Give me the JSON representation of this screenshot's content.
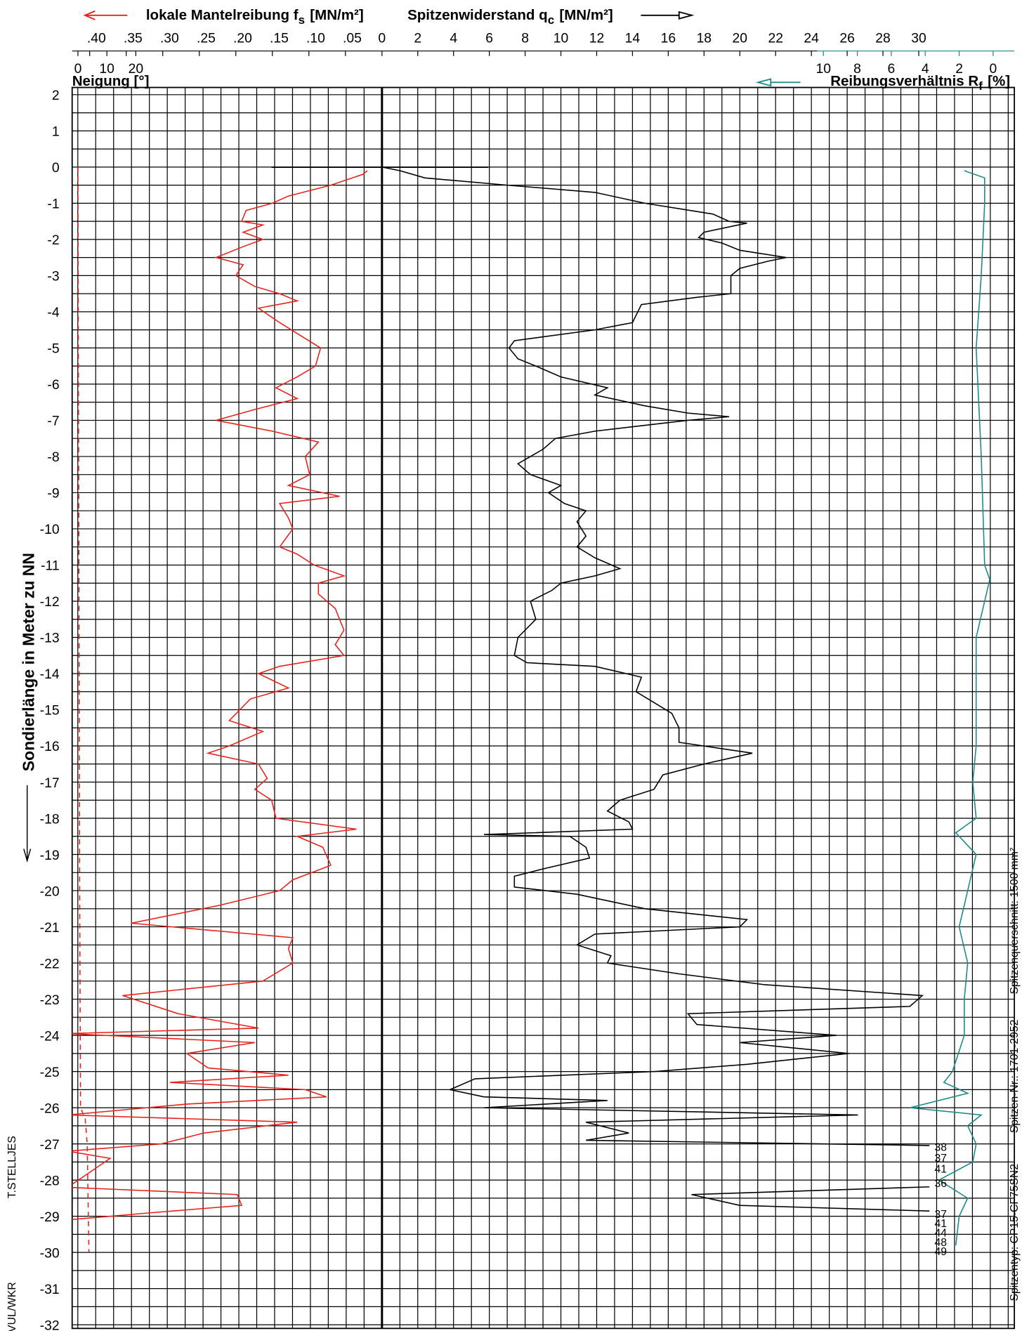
{
  "chart_data": {
    "type": "cpt",
    "y_label": "Sondierlänge in Meter zu  NN",
    "ylim": [
      2.2,
      -32.1
    ],
    "yticks": [
      2,
      1,
      0,
      -1,
      -2,
      -3,
      -4,
      -5,
      -6,
      -7,
      -8,
      -9,
      -10,
      -11,
      -12,
      -13,
      -14,
      -15,
      -16,
      -17,
      -18,
      -19,
      -20,
      -21,
      -22,
      -23,
      -24,
      -25,
      -26,
      -27,
      -28,
      -29,
      -30,
      -31,
      -32
    ],
    "grid": true,
    "fs_axis": {
      "title": {
        "text": "lokale Mantelreibung f",
        "sub": "s",
        "unit": "[MN/m²]"
      },
      "lim": [
        0.424,
        0
      ],
      "ticks": [
        {
          "value": 0.4,
          "label": ".40"
        },
        {
          "value": 0.35,
          "label": ".35"
        },
        {
          "value": 0.3,
          "label": ".30"
        },
        {
          "value": 0.25,
          "label": ".25"
        },
        {
          "value": 0.2,
          "label": ".20"
        },
        {
          "value": 0.15,
          "label": ".15"
        },
        {
          "value": 0.1,
          "label": ".10"
        },
        {
          "value": 0.05,
          "label": ".05"
        }
      ]
    },
    "qc_axis": {
      "title": {
        "text": "Spitzenwiderstand q",
        "sub": "c",
        "unit": "[MN/m²]"
      },
      "lim": [
        0,
        30.6
      ],
      "ticks": [
        0,
        2,
        4,
        6,
        8,
        10,
        12,
        14,
        16,
        18,
        20,
        22,
        24,
        26,
        28,
        30
      ]
    },
    "rf_axis": {
      "title": {
        "text": "Reibungsverhältnis R",
        "sub": "f",
        "unit": "[%]"
      },
      "lim": [
        10.35,
        -1.25
      ],
      "ticks": [
        10,
        8,
        6,
        4,
        2,
        0
      ]
    },
    "neigung_axis": {
      "title": "Neigung [°]",
      "lim": [
        -2,
        20
      ],
      "ticks": [
        0,
        10,
        20
      ]
    },
    "series": [
      {
        "axis": "qc",
        "color": "#000000",
        "dash": false,
        "depth": [
          0,
          -0.1,
          -0.3,
          -0.5,
          -0.7,
          -1.0,
          -1.3,
          -1.5,
          -1.55,
          -1.8,
          -1.95,
          -2.1,
          -2.3,
          -2.5,
          -2.6,
          -2.8,
          -3.0,
          -3.3,
          -3.5,
          -3.6,
          -3.8,
          -4.3,
          -4.5,
          -4.8,
          -5.0,
          -5.3,
          -5.5,
          -5.8,
          -6.1,
          -6.3,
          -6.6,
          -6.8,
          -6.9,
          -7.0,
          -7.3,
          -7.5,
          -7.8,
          -8.2,
          -8.5,
          -8.8,
          -9.0,
          -9.3,
          -9.5,
          -9.8,
          -10.2,
          -10.5,
          -10.8,
          -11.1,
          -11.3,
          -11.5,
          -11.7,
          -12.0,
          -12.5,
          -13.0,
          -13.5,
          -13.7,
          -13.8,
          -14.1,
          -14.5,
          -14.8,
          -15.1,
          -15.5,
          -15.9,
          -16.2,
          -16.5,
          -16.8,
          -17.2,
          -17.5,
          -17.8,
          -18.1,
          -18.3,
          -18.45,
          -18.5,
          -18.8,
          -19.1,
          -19.4,
          -19.6,
          -19.9,
          -20.1,
          -20.5,
          -20.8,
          -21.0,
          -21.2,
          -21.5,
          -21.8,
          -22.0,
          -22.3,
          -22.6,
          -22.9,
          -23.2,
          -23.4,
          -23.7,
          -24.0,
          -24.2,
          -24.5,
          -24.8,
          -25.0,
          -25.2,
          -25.5,
          -25.7,
          -25.8,
          -26.0,
          -26.2,
          -26.4,
          -26.7,
          -26.9,
          -27.1,
          -27.4,
          -27.7,
          -28.1,
          -28.4,
          -28.7,
          -28.95,
          -29.2,
          -29.4,
          -29.6,
          -29.8
        ],
        "values": [
          0,
          1,
          2.4,
          7,
          11.9,
          14.7,
          18.5,
          19.4,
          20.4,
          18,
          17.7,
          19,
          20,
          22.6,
          21.6,
          20,
          19.5,
          19.5,
          19.5,
          17.6,
          14.5,
          14,
          11.9,
          7.4,
          7.1,
          7.6,
          8.6,
          10,
          12.6,
          11.9,
          14.7,
          17.1,
          19.4,
          17.1,
          11.9,
          9.7,
          9,
          7.6,
          8.3,
          10,
          9.3,
          10.2,
          11.4,
          10.9,
          11.4,
          10.9,
          11.9,
          13.3,
          11.9,
          10,
          9.5,
          8.3,
          8.6,
          7.6,
          7.4,
          8.1,
          11.9,
          14.5,
          14.2,
          15.2,
          16.2,
          16.6,
          16.6,
          20.7,
          18,
          15.7,
          15.2,
          13.3,
          12.6,
          13.8,
          14,
          5.7,
          10.5,
          11.4,
          11.6,
          9,
          7.4,
          7.4,
          10.9,
          14.7,
          20.4,
          20,
          11.9,
          10.9,
          12.8,
          12.6,
          16.6,
          21.4,
          30.2,
          29.5,
          17.1,
          17.6,
          25.4,
          20,
          26.1,
          20.4,
          15.2,
          5.2,
          3.8,
          5.7,
          12.6,
          5.7,
          26.6,
          11.4,
          13.8,
          11.4,
          38,
          37,
          41,
          36,
          17.3,
          20,
          37,
          41,
          44,
          48,
          49
        ]
      },
      {
        "axis": "fs",
        "color": "#e8221b",
        "dash": false,
        "depth": [
          -0.1,
          -0.2,
          -0.5,
          -0.8,
          -1.0,
          -1.2,
          -1.5,
          -1.6,
          -1.8,
          -2.0,
          -2.2,
          -2.5,
          -2.7,
          -3.0,
          -3.3,
          -3.5,
          -3.7,
          -3.9,
          -4.3,
          -4.6,
          -5.0,
          -5.5,
          -5.8,
          -6.1,
          -6.4,
          -6.7,
          -7.0,
          -7.3,
          -7.6,
          -8.0,
          -8.5,
          -8.8,
          -9.1,
          -9.3,
          -9.7,
          -10.0,
          -10.5,
          -10.7,
          -11.0,
          -11.3,
          -11.5,
          -11.8,
          -12.2,
          -12.8,
          -13.2,
          -13.5,
          -13.8,
          -14.0,
          -14.4,
          -14.7,
          -15.3,
          -15.6,
          -16.0,
          -16.2,
          -16.5,
          -16.9,
          -17.2,
          -17.5,
          -18.0,
          -18.3,
          -18.5,
          -18.8,
          -19.3,
          -19.7,
          -20.0,
          -20.4,
          -20.9,
          -21.3,
          -21.6,
          -22.0,
          -22.5,
          -22.9,
          -23.4,
          -23.8,
          -23.95,
          -24.2,
          -24.5,
          -24.9,
          -25.1,
          -25.3,
          -25.5,
          -25.7,
          -25.9,
          -26.2,
          -26.4,
          -26.7,
          -27.0,
          -27.2,
          -27.4,
          -28.2,
          -28.4,
          -28.7,
          -28.9,
          -29.1
        ],
        "values": [
          0.02,
          0.026,
          0.07,
          0.128,
          0.15,
          0.186,
          0.192,
          0.163,
          0.19,
          0.163,
          0.19,
          0.227,
          0.19,
          0.2,
          0.174,
          0.14,
          0.116,
          0.169,
          0.14,
          0.116,
          0.084,
          0.091,
          0.116,
          0.145,
          0.116,
          0.174,
          0.227,
          0.15,
          0.087,
          0.105,
          0.099,
          0.128,
          0.058,
          0.14,
          0.128,
          0.122,
          0.14,
          0.116,
          0.093,
          0.052,
          0.087,
          0.087,
          0.064,
          0.052,
          0.064,
          0.052,
          0.14,
          0.169,
          0.128,
          0.18,
          0.209,
          0.163,
          0.209,
          0.238,
          0.169,
          0.157,
          0.174,
          0.151,
          0.145,
          0.035,
          0.116,
          0.081,
          0.07,
          0.122,
          0.14,
          0.221,
          0.343,
          0.122,
          0.128,
          0.122,
          0.163,
          0.355,
          0.279,
          0.169,
          0.43,
          0.174,
          0.267,
          0.238,
          0.128,
          0.29,
          0.105,
          0.076,
          0.267,
          0.43,
          0.116,
          0.244,
          0.302,
          0.43,
          0.372,
          0.43,
          0.198,
          0.192,
          0.314,
          0.43
        ]
      },
      {
        "axis": "rf",
        "color": "#1a8a8a",
        "dash": false,
        "depth": [
          -0.1,
          -0.3,
          -1,
          -3,
          -5,
          -8,
          -11,
          -11.4,
          -13,
          -16,
          -17,
          -18,
          -18.4,
          -19,
          -20,
          -21,
          -22,
          -23,
          -24,
          -25,
          -25.3,
          -25.6,
          -26,
          -26.2,
          -26.5,
          -27,
          -27.5,
          -28,
          -28.5,
          -29,
          -29.8
        ],
        "values": [
          1.7,
          0.5,
          0.5,
          0.7,
          1,
          0.7,
          0.5,
          0.2,
          1,
          1,
          1.2,
          1,
          2.2,
          1,
          1.5,
          2,
          1.5,
          1.7,
          1.7,
          2.4,
          2.9,
          1.5,
          4.9,
          0.7,
          1.5,
          1,
          1.2,
          3.2,
          1.5,
          2,
          2.2
        ]
      },
      {
        "axis": "neigung",
        "color": "#e8221b",
        "dash": true,
        "depth": [
          0,
          -10,
          -20,
          -26,
          -26.3,
          -27,
          -30
        ],
        "values": [
          0,
          0.3,
          0.6,
          0.9,
          2.5,
          3.2,
          3.8
        ]
      }
    ],
    "notes": [
      "Spitzenquerschnitt: 1500 mm²",
      "Spitzen-Nr.: 1701-2952",
      "Spitzentyp:  CP15-CF75SN2"
    ],
    "operator": "T.STELLJES",
    "department": "VUL/WKR"
  }
}
